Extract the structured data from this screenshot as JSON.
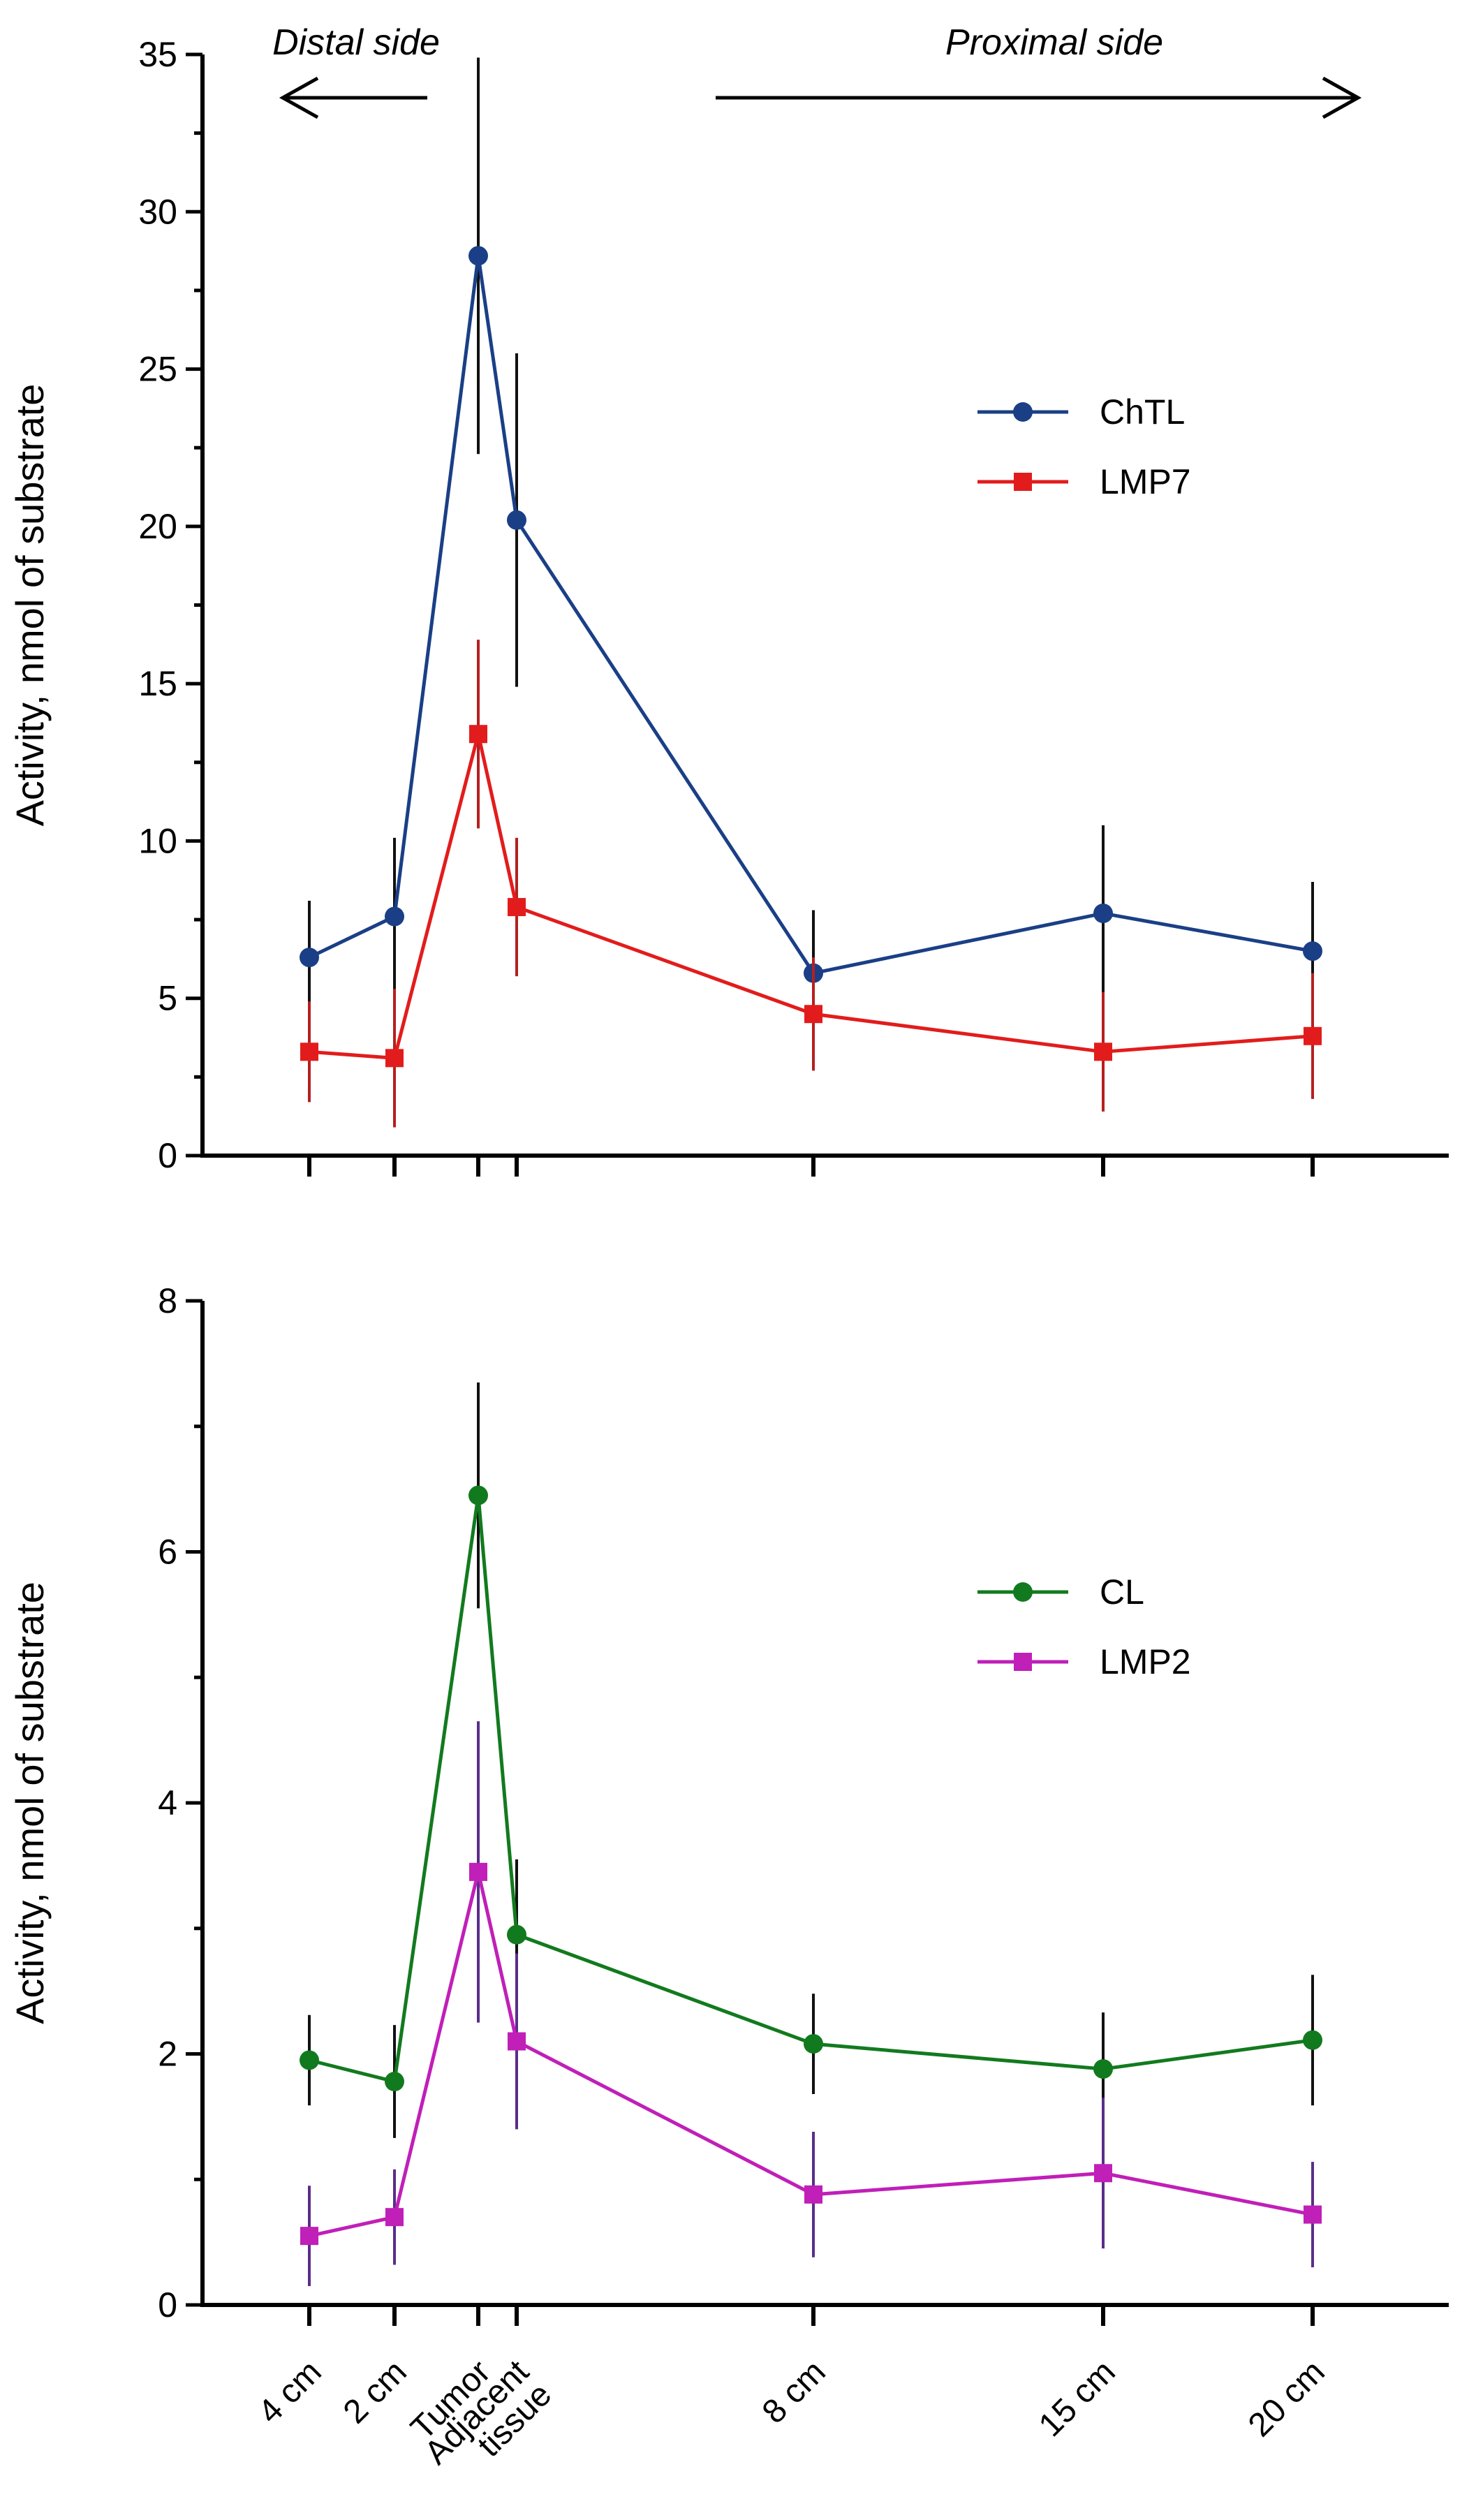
{
  "x_categories": [
    "4 cm",
    "2 cm",
    "Tumor",
    "Adjacent tissue",
    "8 cm",
    "15 cm",
    "20 cm"
  ],
  "x_category_lines": [
    [
      "4 cm"
    ],
    [
      "2 cm"
    ],
    [
      "Tumor"
    ],
    [
      "Adjacent",
      "tissue"
    ],
    [
      "8 cm"
    ],
    [
      "15 cm"
    ],
    [
      "20 cm"
    ]
  ],
  "annotations": {
    "distal": "Distal side",
    "proximal": "Proximal side"
  },
  "chart_data": [
    {
      "type": "line",
      "panel": "top",
      "ylabel": "Activity, nmol of substrate",
      "ylim": [
        0,
        35
      ],
      "yticks": [
        0,
        5,
        10,
        15,
        20,
        25,
        30,
        35
      ],
      "categories": [
        "4 cm",
        "2 cm",
        "Tumor",
        "Adjacent tissue",
        "8 cm",
        "15 cm",
        "20 cm"
      ],
      "legend_position": "right",
      "series": [
        {
          "name": "ChTL",
          "marker": "circle",
          "color": "#1a3f86",
          "values": [
            6.3,
            7.6,
            28.6,
            20.2,
            5.8,
            7.7,
            6.5
          ],
          "errors": [
            1.8,
            2.5,
            6.3,
            5.3,
            2.0,
            2.8,
            2.2
          ],
          "error_color": "#111111"
        },
        {
          "name": "LMP7",
          "marker": "square",
          "color": "#e21c1c",
          "values": [
            3.3,
            3.1,
            13.4,
            7.9,
            4.5,
            3.3,
            3.8
          ],
          "errors": [
            1.6,
            2.2,
            3.0,
            2.2,
            1.8,
            1.9,
            2.0
          ],
          "error_color": "#b52020"
        }
      ]
    },
    {
      "type": "line",
      "panel": "bottom",
      "ylabel": "Activity, nmol of substrate",
      "ylim": [
        0,
        8
      ],
      "yticks": [
        0,
        2,
        4,
        6,
        8
      ],
      "categories": [
        "4 cm",
        "2 cm",
        "Tumor",
        "Adjacent tissue",
        "8 cm",
        "15 cm",
        "20 cm"
      ],
      "legend_position": "right",
      "series": [
        {
          "name": "CL",
          "marker": "circle",
          "color": "#127a1e",
          "values": [
            1.95,
            1.78,
            6.45,
            2.95,
            2.08,
            1.88,
            2.11
          ],
          "errors": [
            0.36,
            0.45,
            0.9,
            0.6,
            0.4,
            0.45,
            0.52
          ],
          "error_color": "#111111"
        },
        {
          "name": "LMP2",
          "marker": "square",
          "color": "#c01fb8",
          "values": [
            0.55,
            0.7,
            3.45,
            2.1,
            0.88,
            1.05,
            0.72
          ],
          "errors": [
            0.4,
            0.38,
            1.2,
            0.7,
            0.5,
            0.6,
            0.42
          ],
          "error_color": "#5a2d8a"
        }
      ]
    }
  ]
}
